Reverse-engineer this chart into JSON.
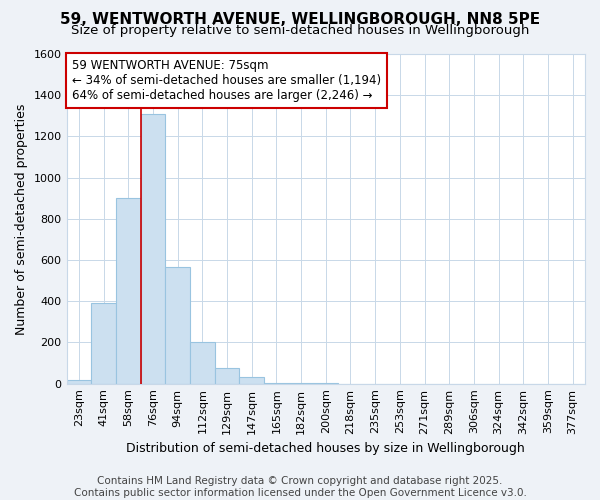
{
  "title": "59, WENTWORTH AVENUE, WELLINGBOROUGH, NN8 5PE",
  "subtitle": "Size of property relative to semi-detached houses in Wellingborough",
  "xlabel": "Distribution of semi-detached houses by size in Wellingborough",
  "ylabel": "Number of semi-detached properties",
  "categories": [
    "23sqm",
    "41sqm",
    "58sqm",
    "76sqm",
    "94sqm",
    "112sqm",
    "129sqm",
    "147sqm",
    "165sqm",
    "182sqm",
    "200sqm",
    "218sqm",
    "235sqm",
    "253sqm",
    "271sqm",
    "289sqm",
    "306sqm",
    "324sqm",
    "342sqm",
    "359sqm",
    "377sqm"
  ],
  "values": [
    20,
    390,
    900,
    1310,
    565,
    200,
    75,
    30,
    5,
    2,
    1,
    0,
    0,
    0,
    0,
    0,
    0,
    0,
    0,
    0,
    0
  ],
  "bar_color": "#cce0f0",
  "bar_edge_color": "#99c4e0",
  "vline_x_index": 3,
  "vline_color": "#cc0000",
  "annotation_text": "59 WENTWORTH AVENUE: 75sqm\n← 34% of semi-detached houses are smaller (1,194)\n64% of semi-detached houses are larger (2,246) →",
  "annotation_box_facecolor": "white",
  "annotation_box_edgecolor": "#cc0000",
  "ylim": [
    0,
    1600
  ],
  "yticks": [
    0,
    200,
    400,
    600,
    800,
    1000,
    1200,
    1400,
    1600
  ],
  "footnote": "Contains HM Land Registry data © Crown copyright and database right 2025.\nContains public sector information licensed under the Open Government Licence v3.0.",
  "fig_background_color": "#eef2f7",
  "plot_background_color": "white",
  "grid_color": "#c8d8e8",
  "title_fontsize": 11,
  "subtitle_fontsize": 9.5,
  "axis_label_fontsize": 9,
  "tick_fontsize": 8,
  "annotation_fontsize": 8.5,
  "footnote_fontsize": 7.5
}
